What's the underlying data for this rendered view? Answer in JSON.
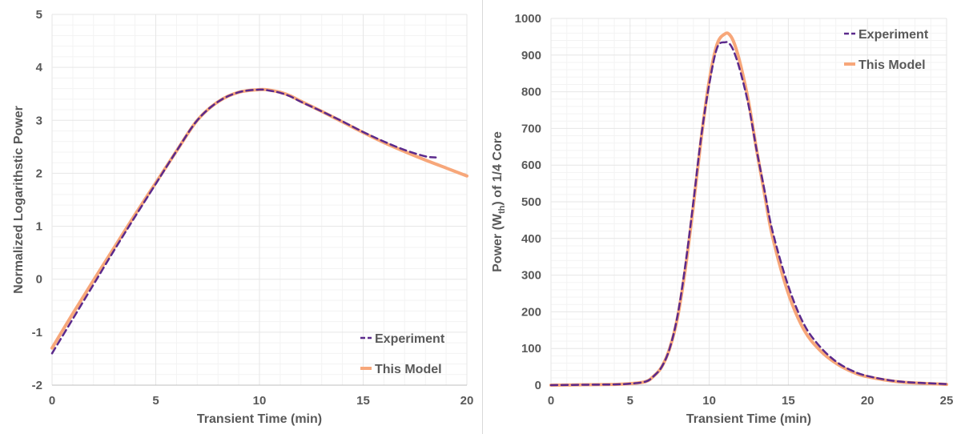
{
  "colors": {
    "experiment": "#5b2a8c",
    "model": "#f7a77a"
  },
  "chart_data": [
    {
      "type": "line",
      "xlabel": "Transient Time (min)",
      "ylabel": "Normalized Logarithstic Power",
      "xlim": [
        0,
        20
      ],
      "ylim": [
        -2,
        5
      ],
      "xticks": [
        0,
        5,
        10,
        15,
        20
      ],
      "yticks": [
        -2,
        -1,
        0,
        1,
        2,
        3,
        4,
        5
      ],
      "grid": true,
      "legend_position": "bottom-right",
      "series": [
        {
          "name": "Experiment",
          "style": "dashed",
          "x": [
            0,
            1,
            2,
            3,
            4,
            5,
            6,
            7,
            8,
            9,
            10,
            10.5,
            11,
            11.5,
            12,
            13,
            14,
            15,
            16,
            17,
            18,
            18.5
          ],
          "y": [
            -1.4,
            -0.75,
            -0.1,
            0.55,
            1.18,
            1.8,
            2.42,
            3.0,
            3.35,
            3.53,
            3.58,
            3.56,
            3.52,
            3.45,
            3.35,
            3.17,
            2.98,
            2.78,
            2.6,
            2.44,
            2.32,
            2.3
          ]
        },
        {
          "name": "This Model",
          "style": "solid",
          "x": [
            0,
            1,
            2,
            3,
            4,
            5,
            6,
            7,
            8,
            9,
            10,
            10.5,
            11,
            11.5,
            12,
            13,
            14,
            15,
            16,
            17,
            18,
            19,
            20
          ],
          "y": [
            -1.3,
            -0.65,
            -0.02,
            0.6,
            1.22,
            1.82,
            2.42,
            3.0,
            3.35,
            3.53,
            3.58,
            3.57,
            3.53,
            3.46,
            3.36,
            3.17,
            2.97,
            2.77,
            2.58,
            2.41,
            2.25,
            2.1,
            1.95
          ]
        }
      ]
    },
    {
      "type": "line",
      "xlabel": "Transient Time (min)",
      "ylabel_main": "Power (W",
      "ylabel_sub": "th",
      "ylabel_rest": ") of 1/4 Core",
      "xlim": [
        0,
        25
      ],
      "ylim": [
        0,
        1000
      ],
      "xticks": [
        0,
        5,
        10,
        15,
        20,
        25
      ],
      "yticks": [
        0,
        100,
        200,
        300,
        400,
        500,
        600,
        700,
        800,
        900,
        1000
      ],
      "grid": true,
      "legend_position": "top-right",
      "series": [
        {
          "name": "Experiment",
          "style": "dashed",
          "x": [
            0,
            2,
            4,
            5,
            6,
            6.5,
            7,
            7.5,
            8,
            8.5,
            9,
            9.5,
            10,
            10.5,
            11,
            11.3,
            11.6,
            12,
            12.5,
            13,
            13.5,
            14,
            15,
            16,
            17,
            18,
            19,
            20,
            22,
            25
          ],
          "y": [
            0,
            1,
            2,
            4,
            10,
            25,
            50,
            100,
            190,
            330,
            500,
            680,
            820,
            920,
            935,
            930,
            905,
            850,
            760,
            640,
            530,
            420,
            270,
            165,
            105,
            65,
            40,
            25,
            10,
            3
          ]
        },
        {
          "name": "This Model",
          "style": "solid",
          "x": [
            0,
            2,
            4,
            5,
            6,
            6.5,
            7,
            7.5,
            8,
            8.5,
            9,
            9.5,
            10,
            10.5,
            11,
            11.3,
            11.6,
            12,
            12.5,
            13,
            13.5,
            14,
            15,
            16,
            17,
            18,
            19,
            20,
            22,
            25
          ],
          "y": [
            0,
            1,
            2,
            4,
            10,
            25,
            50,
            100,
            185,
            320,
            490,
            675,
            830,
            930,
            958,
            955,
            930,
            870,
            770,
            640,
            520,
            405,
            250,
            150,
            95,
            60,
            37,
            23,
            9,
            2
          ]
        }
      ]
    }
  ]
}
